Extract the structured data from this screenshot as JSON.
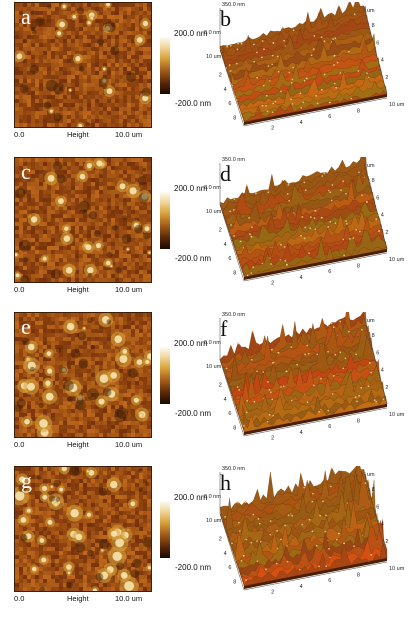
{
  "panels": [
    {
      "label_2d": "a",
      "label_3d": "b",
      "variant": 1
    },
    {
      "label_2d": "c",
      "label_3d": "d",
      "variant": 2
    },
    {
      "label_2d": "e",
      "label_3d": "f",
      "variant": 3
    },
    {
      "label_2d": "g",
      "label_3d": "h",
      "variant": 4
    }
  ],
  "height_map": {
    "x_start": "0.0",
    "x_label": "Height",
    "x_end": "10.0 um",
    "scale_max": "200.0 nm",
    "scale_min": "-200.0 nm",
    "colors": [
      "#1a0800",
      "#5c2a08",
      "#a8601a",
      "#d9a43c",
      "#f1d9a0",
      "#ffffff"
    ]
  },
  "surface_3d": {
    "z_max_label": "350.0 nm",
    "z_zero_label": "0.0 nm",
    "depth_end_label": "10 um",
    "width_end_label": "10 um",
    "um_label": "um",
    "width_ticks": [
      "2",
      "4",
      "6",
      "8"
    ],
    "depth_ticks": [
      "2",
      "4",
      "6",
      "8"
    ]
  }
}
